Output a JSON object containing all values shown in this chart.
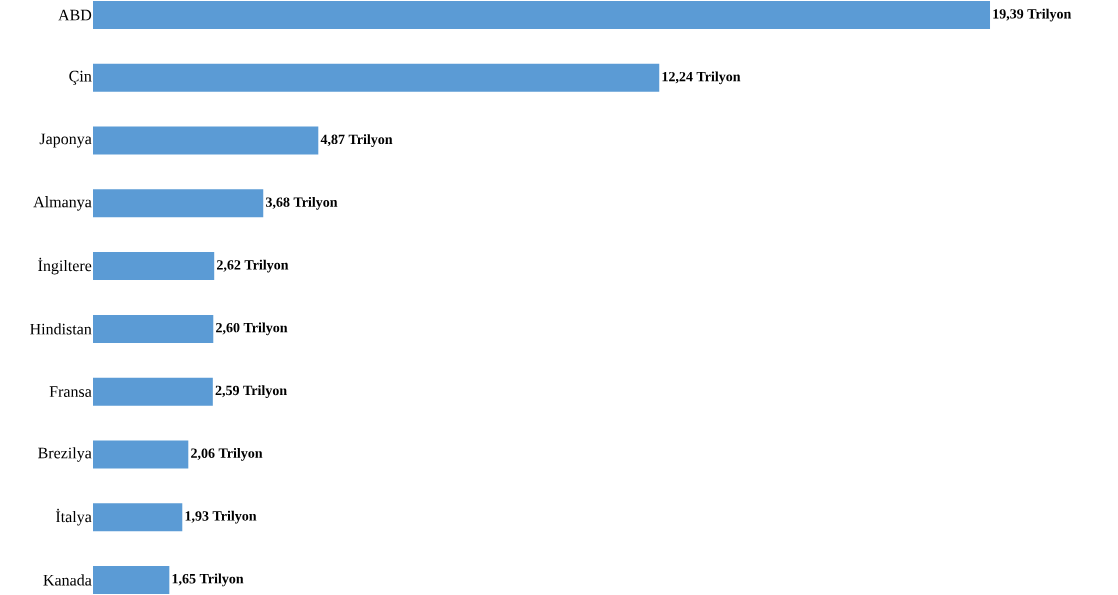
{
  "chart_data": {
    "type": "bar",
    "orientation": "horizontal",
    "categories": [
      "ABD",
      "Çin",
      "Japonya",
      "Almanya",
      "İngiltere",
      "Hindistan",
      "Fransa",
      "Brezilya",
      "İtalya",
      "Kanada"
    ],
    "values": [
      19.39,
      12.24,
      4.87,
      3.68,
      2.62,
      2.6,
      2.59,
      2.06,
      1.93,
      1.65
    ],
    "value_labels": [
      "19,39 Trilyon",
      "12,24 Trilyon",
      "4,87 Trilyon",
      "3,68 Trilyon",
      "2,62 Trilyon",
      "2,60 Trilyon",
      "2,59 Trilyon",
      "2,06 Trilyon",
      "1,93 Trilyon",
      "1,65 Trilyon"
    ],
    "color": "#5b9bd5"
  }
}
